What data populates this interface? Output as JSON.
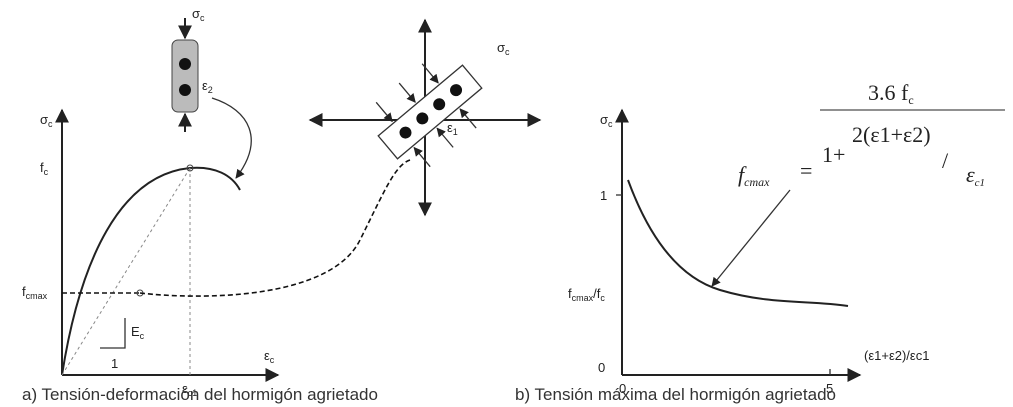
{
  "panel_a": {
    "caption": "a) Tensión-deformación del hormigón agrietado",
    "y_label": {
      "symbol": "σ",
      "sub": "c"
    },
    "x_label": {
      "symbol": "ε",
      "sub": "c"
    },
    "peak_stress": {
      "symbol": "f",
      "sub": "c"
    },
    "reduced_stress": {
      "symbol": "f",
      "sub": "cmax"
    },
    "modulus": {
      "symbol": "E",
      "sub": "c"
    },
    "slope_run": "1",
    "peak_strain": {
      "symbol": "ε",
      "sub": "c1"
    },
    "cylinder_stress": {
      "symbol": "σ",
      "sub": "c"
    },
    "cylinder_strain": {
      "symbol": "ε",
      "sub": "2"
    },
    "element_stress": {
      "symbol": "σ",
      "sub": "c"
    },
    "element_strain": {
      "symbol": "ε",
      "sub": "1"
    }
  },
  "panel_b": {
    "caption": "b) Tensión máxima del hormigón agrietado",
    "y_label": {
      "symbol": "σ",
      "sub": "c"
    },
    "y_tick_top": "1",
    "y_tick_origin": "0",
    "ratio_label": {
      "symbol": "f",
      "sub": "cmax",
      "rest": "/f",
      "sub2": "c"
    },
    "x_tick_start": "0",
    "x_tick_end": "5",
    "x_label": "(ε1+ε2)/εc1",
    "formula": {
      "lhs": "f",
      "lhs_sub": "cmax",
      "equals": "=",
      "numerator": "3.6 f",
      "numerator_sub": "c",
      "one_plus": "1+",
      "inner": "2(ε1+ε2)",
      "slash": "/",
      "divisor": "ε",
      "divisor_sub": "c1"
    }
  }
}
